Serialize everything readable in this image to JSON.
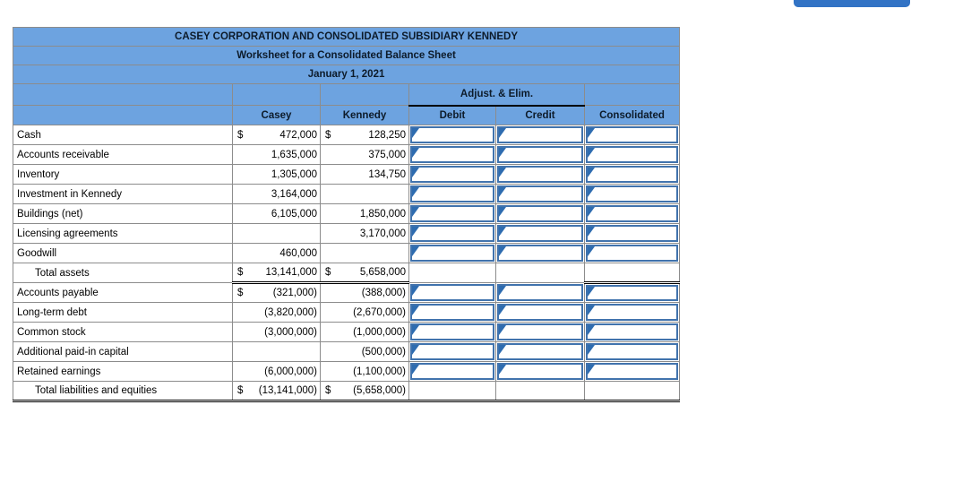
{
  "worksheet": {
    "title": "CASEY CORPORATION AND CONSOLIDATED SUBSIDIARY KENNEDY",
    "subtitle": "Worksheet for a Consolidated Balance Sheet",
    "date": "January 1, 2021",
    "adjust_elim_label": "Adjust. & Elim.",
    "columns": {
      "casey": "Casey",
      "kennedy": "Kennedy",
      "debit": "Debit",
      "credit": "Credit",
      "consolidated": "Consolidated"
    },
    "rows": [
      {
        "label": "Cash",
        "casey_cur": "$",
        "casey": "472,000",
        "kennedy_cur": "$",
        "kennedy": "128,250",
        "inputs": true
      },
      {
        "label": "Accounts receivable",
        "casey": "1,635,000",
        "kennedy": "375,000",
        "inputs": true
      },
      {
        "label": "Inventory",
        "casey": "1,305,000",
        "kennedy": "134,750",
        "inputs": true
      },
      {
        "label": "Investment in Kennedy",
        "casey": "3,164,000",
        "inputs": true
      },
      {
        "label": "Buildings (net)",
        "casey": "6,105,000",
        "kennedy": "1,850,000",
        "inputs": true
      },
      {
        "label": "Licensing agreements",
        "kennedy": "3,170,000",
        "inputs": true
      },
      {
        "label": "Goodwill",
        "casey": "460,000",
        "inputs": true
      },
      {
        "label": "Total assets",
        "casey_cur": "$",
        "casey": "13,141,000",
        "kennedy_cur": "$",
        "kennedy": "5,658,000",
        "total": true
      },
      {
        "label": "Accounts payable",
        "casey_cur": "$",
        "casey": "(321,000)",
        "kennedy": "(388,000)",
        "inputs": true
      },
      {
        "label": "Long-term debt",
        "casey": "(3,820,000)",
        "kennedy": "(2,670,000)",
        "inputs": true
      },
      {
        "label": "Common stock",
        "casey": "(3,000,000)",
        "kennedy": "(1,000,000)",
        "inputs": true
      },
      {
        "label": "Additional paid-in capital",
        "kennedy": "(500,000)",
        "inputs": true
      },
      {
        "label": "Retained earnings",
        "casey": "(6,000,000)",
        "kennedy": "(1,100,000)",
        "inputs": true
      },
      {
        "label": "Total liabilities and equities",
        "casey_cur": "$",
        "casey": "(13,141,000)",
        "kennedy_cur": "$",
        "kennedy": "(5,658,000)",
        "total": true,
        "last": true
      }
    ],
    "input_cell_value": ""
  },
  "colors": {
    "header_blue": "#6da3e0",
    "input_border": "#4173ad",
    "flag_blue": "#2e6cb0",
    "button_blue": "#3273c5",
    "grid_gray": "#8c8c8c"
  }
}
